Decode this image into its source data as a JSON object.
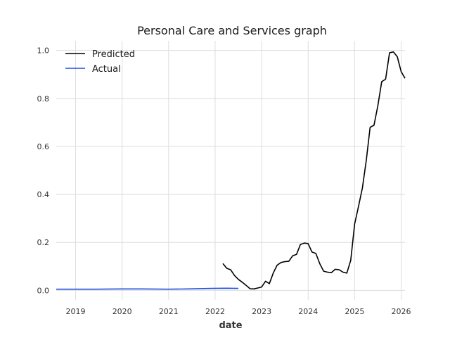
{
  "chart_data": {
    "type": "line",
    "title": "Personal Care and Services graph",
    "xlabel": "date",
    "ylabel": "",
    "x_ticks": [
      "2019",
      "2020",
      "2021",
      "2022",
      "2023",
      "2024",
      "2025",
      "2026"
    ],
    "y_ticks": [
      "0.0",
      "0.2",
      "0.4",
      "0.6",
      "0.8",
      "1.0"
    ],
    "xlim": [
      "2018-08-01",
      "2026-02-01"
    ],
    "ylim": [
      -0.04,
      1.04
    ],
    "grid": true,
    "legend_position": "top-left",
    "series": [
      {
        "name": "Predicted",
        "color": "#000000",
        "points": [
          [
            "2022-03-01",
            0.112
          ],
          [
            "2022-04-01",
            0.092
          ],
          [
            "2022-05-01",
            0.086
          ],
          [
            "2022-06-01",
            0.062
          ],
          [
            "2022-07-01",
            0.046
          ],
          [
            "2022-08-01",
            0.034
          ],
          [
            "2022-09-01",
            0.021
          ],
          [
            "2022-10-01",
            0.007
          ],
          [
            "2022-11-01",
            0.006
          ],
          [
            "2022-12-01",
            0.01
          ],
          [
            "2023-01-01",
            0.014
          ],
          [
            "2023-02-01",
            0.038
          ],
          [
            "2023-03-01",
            0.028
          ],
          [
            "2023-04-01",
            0.072
          ],
          [
            "2023-05-01",
            0.105
          ],
          [
            "2023-06-01",
            0.116
          ],
          [
            "2023-07-01",
            0.12
          ],
          [
            "2023-08-01",
            0.121
          ],
          [
            "2023-09-01",
            0.144
          ],
          [
            "2023-10-01",
            0.15
          ],
          [
            "2023-11-01",
            0.191
          ],
          [
            "2023-12-01",
            0.197
          ],
          [
            "2024-01-01",
            0.195
          ],
          [
            "2024-02-01",
            0.16
          ],
          [
            "2024-03-01",
            0.154
          ],
          [
            "2024-04-01",
            0.111
          ],
          [
            "2024-05-01",
            0.08
          ],
          [
            "2024-06-01",
            0.076
          ],
          [
            "2024-07-01",
            0.074
          ],
          [
            "2024-08-01",
            0.088
          ],
          [
            "2024-09-01",
            0.086
          ],
          [
            "2024-10-01",
            0.076
          ],
          [
            "2024-11-01",
            0.072
          ],
          [
            "2024-12-01",
            0.125
          ],
          [
            "2025-01-01",
            0.277
          ],
          [
            "2025-02-01",
            0.35
          ],
          [
            "2025-03-01",
            0.427
          ],
          [
            "2025-04-01",
            0.541
          ],
          [
            "2025-05-01",
            0.68
          ],
          [
            "2025-06-01",
            0.688
          ],
          [
            "2025-07-01",
            0.77
          ],
          [
            "2025-08-01",
            0.87
          ],
          [
            "2025-09-01",
            0.88
          ],
          [
            "2025-10-01",
            0.99
          ],
          [
            "2025-11-01",
            0.994
          ],
          [
            "2025-12-01",
            0.974
          ],
          [
            "2026-01-01",
            0.912
          ],
          [
            "2026-02-01",
            0.884
          ]
        ]
      },
      {
        "name": "Actual",
        "color": "#1f4fe0",
        "points": [
          [
            "2018-08-01",
            0.005
          ],
          [
            "2019-01-01",
            0.005
          ],
          [
            "2019-06-01",
            0.005
          ],
          [
            "2020-01-01",
            0.006
          ],
          [
            "2020-06-01",
            0.006
          ],
          [
            "2021-01-01",
            0.005
          ],
          [
            "2021-06-01",
            0.006
          ],
          [
            "2021-12-01",
            0.008
          ],
          [
            "2022-04-01",
            0.009
          ],
          [
            "2022-07-01",
            0.008
          ]
        ]
      }
    ]
  }
}
